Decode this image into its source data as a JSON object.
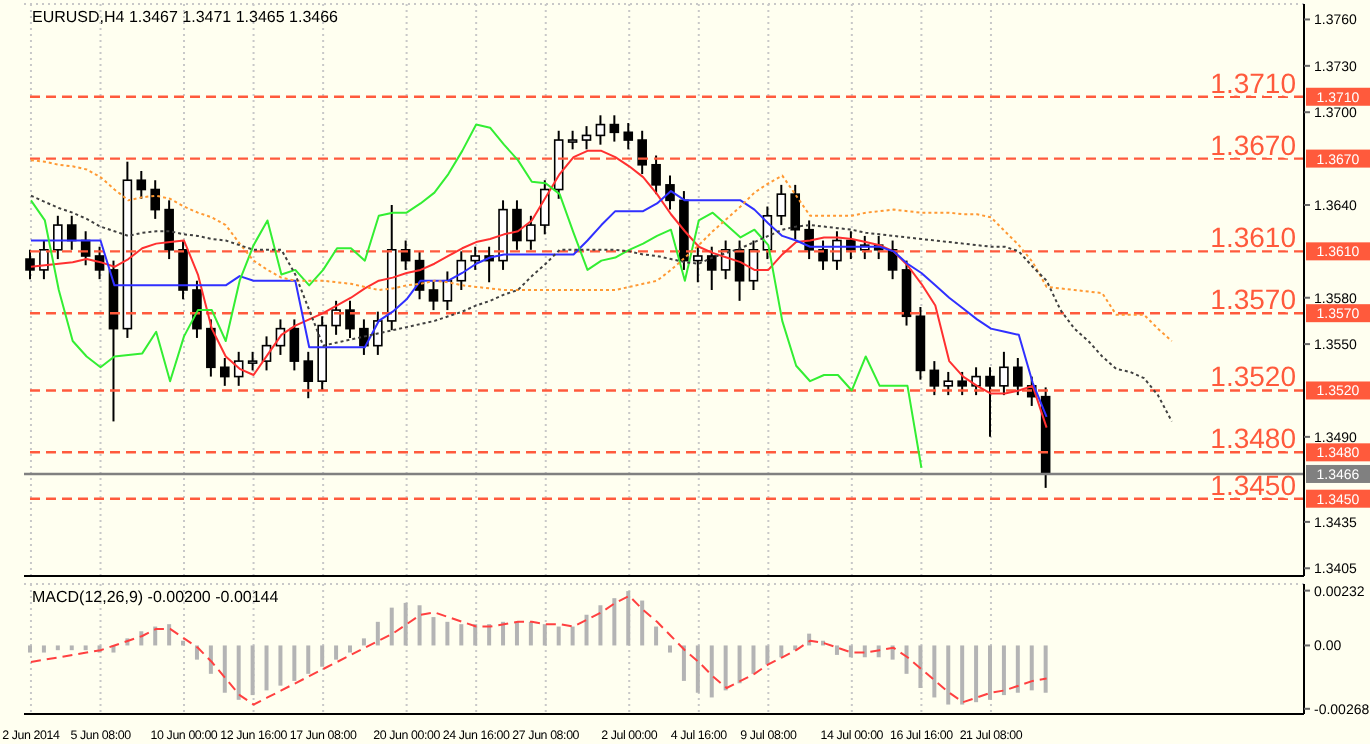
{
  "chart_data": [
    {
      "type": "candlestick",
      "title": "EURUSD,H4  1.3467 1.3471 1.3465 1.3466",
      "color": "#000000",
      "grid": true,
      "tick_labels": "y",
      "categories": [
        null,
        null,
        null,
        null,
        null,
        null,
        null,
        null,
        null,
        null,
        null,
        null,
        null,
        null,
        null,
        null,
        null,
        null,
        null,
        null,
        null,
        null,
        null,
        null,
        null,
        null,
        null,
        null,
        null,
        null,
        null,
        null,
        null,
        null,
        null,
        null,
        null,
        null,
        null,
        null,
        null,
        null,
        null,
        null,
        null,
        null,
        null,
        null,
        null,
        null,
        null,
        null,
        null,
        null,
        null,
        null,
        null,
        null,
        null,
        null,
        null,
        null,
        null,
        null,
        null,
        null,
        null,
        null,
        null,
        null,
        null,
        null,
        null,
        null,
        null,
        null,
        null,
        null,
        null,
        null,
        null,
        null,
        null,
        null,
        null,
        null,
        null,
        null,
        null,
        null,
        null,
        null
      ],
      "ylim": [
        1.34,
        1.377
      ],
      "yticks": [
        {
          "value": 1.376,
          "label": "1.3760"
        },
        {
          "value": 1.373,
          "label": "1.3730"
        },
        {
          "value": 1.37,
          "label": "1.3700"
        },
        {
          "value": 1.364,
          "label": "1.3640"
        },
        {
          "value": 1.358,
          "label": "1.3580"
        },
        {
          "value": 1.355,
          "label": "1.3550"
        },
        {
          "value": 1.349,
          "label": "1.3490"
        },
        {
          "value": 1.3435,
          "label": "1.3435"
        },
        {
          "value": 1.3405,
          "label": "1.3405"
        }
      ],
      "ohlc": [
        [
          1.3605,
          1.3611,
          1.3592,
          1.3598
        ],
        [
          1.3598,
          1.3617,
          1.3592,
          1.3611
        ],
        [
          1.3611,
          1.3633,
          1.3605,
          1.3627
        ],
        [
          1.3627,
          1.3633,
          1.3611,
          1.3617
        ],
        [
          1.3617,
          1.3623,
          1.3601,
          1.3607
        ],
        [
          1.3607,
          1.3613,
          1.3592,
          1.3598
        ],
        [
          1.3598,
          1.3604,
          1.35,
          1.356
        ],
        [
          1.356,
          1.3668,
          1.3554,
          1.3656
        ],
        [
          1.3656,
          1.3662,
          1.3644,
          1.365
        ],
        [
          1.365,
          1.3656,
          1.3631,
          1.3637
        ],
        [
          1.3637,
          1.3643,
          1.3605,
          1.3611
        ],
        [
          1.3611,
          1.3617,
          1.3579,
          1.3585
        ],
        [
          1.3585,
          1.3591,
          1.3554,
          1.356
        ],
        [
          1.356,
          1.3566,
          1.3529,
          1.3535
        ],
        [
          1.3535,
          1.3541,
          1.3523,
          1.3529
        ],
        [
          1.3529,
          1.3545,
          1.3523,
          1.3539
        ],
        [
          1.3539,
          1.3545,
          1.3533,
          1.3539
        ],
        [
          1.3539,
          1.3555,
          1.3533,
          1.3549
        ],
        [
          1.3549,
          1.3566,
          1.3543,
          1.356
        ],
        [
          1.356,
          1.3566,
          1.3533,
          1.3539
        ],
        [
          1.3539,
          1.3545,
          1.3515,
          1.3526
        ],
        [
          1.3526,
          1.3568,
          1.352,
          1.3562
        ],
        [
          1.3562,
          1.3578,
          1.3556,
          1.3572
        ],
        [
          1.3572,
          1.3578,
          1.3554,
          1.356
        ],
        [
          1.356,
          1.3566,
          1.3543,
          1.3549
        ],
        [
          1.3549,
          1.3571,
          1.3543,
          1.3565
        ],
        [
          1.3565,
          1.364,
          1.3559,
          1.3611
        ],
        [
          1.3611,
          1.3617,
          1.3598,
          1.3604
        ],
        [
          1.3604,
          1.361,
          1.3579,
          1.3585
        ],
        [
          1.3585,
          1.3591,
          1.3572,
          1.3578
        ],
        [
          1.3578,
          1.3597,
          1.3572,
          1.3591
        ],
        [
          1.3591,
          1.361,
          1.3585,
          1.3604
        ],
        [
          1.3604,
          1.3613,
          1.3598,
          1.3607
        ],
        [
          1.3607,
          1.3613,
          1.359,
          1.3604
        ],
        [
          1.3604,
          1.3643,
          1.3598,
          1.3637
        ],
        [
          1.3637,
          1.3643,
          1.3611,
          1.3617
        ],
        [
          1.3617,
          1.3633,
          1.3611,
          1.3627
        ],
        [
          1.3627,
          1.3656,
          1.3621,
          1.365
        ],
        [
          1.365,
          1.3688,
          1.3644,
          1.3682
        ],
        [
          1.3682,
          1.3688,
          1.3676,
          1.3682
        ],
        [
          1.3682,
          1.3691,
          1.3676,
          1.3685
        ],
        [
          1.3685,
          1.3698,
          1.3679,
          1.3692
        ],
        [
          1.3692,
          1.3698,
          1.3681,
          1.3687
        ],
        [
          1.3687,
          1.3693,
          1.3676,
          1.3682
        ],
        [
          1.3682,
          1.3688,
          1.366,
          1.3666
        ],
        [
          1.3666,
          1.3672,
          1.3647,
          1.3653
        ],
        [
          1.3653,
          1.3659,
          1.3637,
          1.3643
        ],
        [
          1.3643,
          1.3649,
          1.3598,
          1.3604
        ],
        [
          1.3604,
          1.3613,
          1.359,
          1.3607
        ],
        [
          1.3607,
          1.3613,
          1.3585,
          1.3598
        ],
        [
          1.3598,
          1.3617,
          1.3592,
          1.3611
        ],
        [
          1.3611,
          1.3617,
          1.3578,
          1.3591
        ],
        [
          1.3591,
          1.3617,
          1.3585,
          1.3611
        ],
        [
          1.3611,
          1.3639,
          1.3605,
          1.3633
        ],
        [
          1.3633,
          1.3653,
          1.3627,
          1.3647
        ],
        [
          1.3647,
          1.3653,
          1.3618,
          1.3624
        ],
        [
          1.3624,
          1.363,
          1.3605,
          1.3611
        ],
        [
          1.3611,
          1.3617,
          1.3598,
          1.3604
        ],
        [
          1.3604,
          1.3623,
          1.3598,
          1.3617
        ],
        [
          1.3617,
          1.3623,
          1.3605,
          1.3611
        ],
        [
          1.3611,
          1.362,
          1.3605,
          1.3614
        ],
        [
          1.3614,
          1.362,
          1.3605,
          1.3611
        ],
        [
          1.3611,
          1.3617,
          1.3592,
          1.3598
        ],
        [
          1.3598,
          1.3604,
          1.3562,
          1.3568
        ],
        [
          1.3568,
          1.3574,
          1.3527,
          1.3533
        ],
        [
          1.3533,
          1.3539,
          1.3517,
          1.3523
        ],
        [
          1.3523,
          1.3532,
          1.3517,
          1.3526
        ],
        [
          1.3526,
          1.3532,
          1.3517,
          1.3523
        ],
        [
          1.3523,
          1.3535,
          1.3517,
          1.3529
        ],
        [
          1.3529,
          1.3535,
          1.349,
          1.3523
        ],
        [
          1.3523,
          1.3545,
          1.3517,
          1.3535
        ],
        [
          1.3535,
          1.3541,
          1.3517,
          1.3523
        ],
        [
          1.3523,
          1.3529,
          1.351,
          1.3516
        ],
        [
          1.3516,
          1.3522,
          1.3457,
          1.3466
        ],
        null,
        null,
        null,
        null,
        null,
        null,
        null,
        null,
        null,
        null,
        null,
        null,
        null,
        null,
        null,
        null,
        null,
        null
      ],
      "series": [
        {
          "type": "line",
          "color": "#ff3030",
          "values": [
            1.36,
            1.3601,
            1.3602,
            1.3603,
            1.3605,
            1.3603,
            1.36,
            1.3605,
            1.3612,
            1.3615,
            1.3616,
            1.3617,
            1.3595,
            1.356,
            1.3542,
            1.3534,
            1.353,
            1.3543,
            1.3556,
            1.3562,
            1.3566,
            1.357,
            1.3575,
            1.358,
            1.3586,
            1.3591,
            1.3593,
            1.3596,
            1.3598,
            1.3602,
            1.3607,
            1.3612,
            1.3616,
            1.3618,
            1.3621,
            1.3623,
            1.363,
            1.3645,
            1.366,
            1.3671,
            1.3675,
            1.3675,
            1.3671,
            1.3665,
            1.3658,
            1.3647,
            1.3634,
            1.3623,
            1.3613,
            1.3609,
            1.3606,
            1.3603,
            1.3598,
            1.3598,
            1.3608,
            1.3616,
            1.3617,
            1.3619,
            1.3619,
            1.3618,
            1.3616,
            1.3614,
            1.361,
            1.3601,
            1.3589,
            1.3575,
            1.3539,
            1.3529,
            1.3523,
            1.3518,
            1.3518,
            1.352,
            1.3523,
            1.3496,
            null,
            null,
            null,
            null,
            null,
            null,
            null,
            null,
            null,
            null,
            null,
            null,
            null,
            null,
            null,
            null,
            null,
            null
          ]
        },
        {
          "type": "line",
          "color": "#3030ff",
          "values": [
            1.3617,
            1.3617,
            1.3617,
            1.3617,
            1.3617,
            1.3617,
            1.3588,
            1.3588,
            1.3588,
            1.3588,
            1.3588,
            1.3588,
            1.3588,
            1.3588,
            1.3588,
            1.3594,
            1.3591,
            1.3591,
            1.3591,
            1.3591,
            1.3548,
            1.3548,
            1.3548,
            1.3548,
            1.3548,
            1.3565,
            1.3571,
            1.3579,
            1.3591,
            1.3591,
            1.3591,
            1.3596,
            1.3602,
            1.3606,
            1.3608,
            1.3608,
            1.3608,
            1.3608,
            1.3608,
            1.3608,
            1.3617,
            1.3627,
            1.3636,
            1.3636,
            1.3636,
            1.3641,
            1.3649,
            1.3643,
            1.3643,
            1.3643,
            1.3643,
            1.3643,
            1.3637,
            1.3628,
            1.362,
            1.3617,
            1.3613,
            1.3613,
            1.3613,
            1.3613,
            1.3613,
            1.3613,
            1.361,
            1.3602,
            1.3596,
            1.3588,
            1.358,
            1.3573,
            1.3566,
            1.356,
            1.3558,
            1.3556,
            1.3525,
            1.3503,
            null,
            null,
            null,
            null,
            null,
            null,
            null,
            null,
            null,
            null,
            null,
            null,
            null,
            null,
            null,
            null,
            null,
            null
          ]
        },
        {
          "type": "line",
          "color": "#33ee33",
          "values": [
            1.3643,
            1.363,
            1.3585,
            1.3552,
            1.3542,
            1.3535,
            1.3542,
            1.3543,
            1.3544,
            1.3558,
            1.3526,
            1.3555,
            1.3572,
            1.3572,
            1.3552,
            1.3591,
            1.3614,
            1.363,
            1.3595,
            1.3598,
            1.3588,
            1.3598,
            1.3612,
            1.3612,
            1.3604,
            1.3633,
            1.3635,
            1.3635,
            1.3641,
            1.3648,
            1.366,
            1.3675,
            1.3692,
            1.369,
            1.3679,
            1.3669,
            1.3655,
            1.3654,
            1.3647,
            1.3622,
            1.3598,
            1.3604,
            1.3606,
            1.3611,
            1.3615,
            1.362,
            1.3624,
            1.3591,
            1.363,
            1.3635,
            1.3627,
            1.3619,
            1.3624,
            1.3614,
            1.3565,
            1.3536,
            1.3526,
            1.353,
            1.353,
            1.352,
            1.3542,
            1.3523,
            1.3523,
            1.3523,
            1.347,
            null,
            null,
            null,
            null,
            null,
            null,
            null,
            null,
            null,
            null,
            null,
            null,
            null,
            null,
            null,
            null,
            null,
            null,
            null,
            null,
            null,
            null,
            null,
            null,
            null,
            null,
            null
          ]
        },
        {
          "type": "line",
          "color": "#ff9933",
          "line_style": "dotted",
          "values": [
            1.3669,
            1.3668,
            1.3666,
            1.3665,
            1.3663,
            1.3658,
            1.365,
            1.3643,
            1.3645,
            1.3646,
            1.3644,
            1.3639,
            1.3635,
            1.3632,
            1.3627,
            1.3615,
            1.3604,
            1.3598,
            1.3593,
            1.3591,
            1.3591,
            1.3591,
            1.359,
            1.3589,
            1.3587,
            1.3585,
            1.3586,
            1.3588,
            1.3589,
            1.3591,
            1.359,
            1.3588,
            1.3587,
            1.3586,
            1.3585,
            1.3585,
            1.3585,
            1.3585,
            1.3585,
            1.3585,
            1.3585,
            1.3585,
            1.3585,
            1.3587,
            1.3589,
            1.3591,
            1.3598,
            1.3606,
            1.3614,
            1.3623,
            1.3631,
            1.3639,
            1.3648,
            1.3654,
            1.3659,
            1.3646,
            1.3633,
            1.3633,
            1.3633,
            1.3633,
            1.3635,
            1.3636,
            1.3637,
            1.3636,
            1.3635,
            1.3635,
            1.3635,
            1.3634,
            1.3634,
            1.3632,
            1.3623,
            1.3614,
            1.3603,
            1.3587,
            1.3586,
            1.3585,
            1.3584,
            1.3583,
            1.3569,
            1.3569,
            1.3569,
            1.356,
            1.3552,
            null,
            null,
            null,
            null,
            null,
            null,
            null,
            null,
            null
          ]
        },
        {
          "type": "line",
          "color": "#404040",
          "line_style": "dotted",
          "values": [
            1.3646,
            1.3642,
            1.3638,
            1.3635,
            1.3631,
            1.3626,
            1.3623,
            1.362,
            1.3622,
            1.3623,
            1.3623,
            1.3621,
            1.362,
            1.3618,
            1.3617,
            1.3614,
            1.3611,
            1.3611,
            1.3611,
            1.3595,
            1.3572,
            1.3549,
            1.3551,
            1.3553,
            1.3555,
            1.3557,
            1.3559,
            1.3561,
            1.3563,
            1.3565,
            1.3568,
            1.3571,
            1.3575,
            1.3578,
            1.3582,
            1.3585,
            1.3594,
            1.3602,
            1.3611,
            1.3611,
            1.3611,
            1.3611,
            1.3611,
            1.361,
            1.3608,
            1.3607,
            1.3605,
            1.3603,
            1.3602,
            1.3606,
            1.3609,
            1.3612,
            1.3616,
            1.362,
            1.3624,
            1.3626,
            1.3627,
            1.3626,
            1.3625,
            1.3624,
            1.3622,
            1.3621,
            1.362,
            1.3619,
            1.3618,
            1.3617,
            1.3616,
            1.3615,
            1.3614,
            1.3613,
            1.3613,
            1.361,
            1.36,
            1.3591,
            1.3572,
            1.356,
            1.3552,
            1.3542,
            1.3534,
            1.3532,
            1.3528,
            1.3517,
            1.35,
            null,
            null,
            null,
            null,
            null,
            null,
            null,
            null,
            null
          ]
        }
      ],
      "ref_lines": [
        {
          "axis": "y",
          "value": 1.371,
          "label": "1.3710",
          "color": "#ff5a3c",
          "line_style": "dashed"
        },
        {
          "axis": "y",
          "value": 1.367,
          "label": "1.3670",
          "color": "#ff5a3c",
          "line_style": "dashed"
        },
        {
          "axis": "y",
          "value": 1.361,
          "label": "1.3610",
          "color": "#ff5a3c",
          "line_style": "dashed"
        },
        {
          "axis": "y",
          "value": 1.357,
          "label": "1.3570",
          "color": "#ff5a3c",
          "line_style": "dashed"
        },
        {
          "axis": "y",
          "value": 1.352,
          "label": "1.3520",
          "color": "#ff5a3c",
          "line_style": "dashed"
        },
        {
          "axis": "y",
          "value": 1.348,
          "label": "1.3480",
          "color": "#ff5a3c",
          "line_style": "dashed"
        },
        {
          "axis": "y",
          "value": 1.345,
          "label": "1.3450",
          "color": "#ff5a3c",
          "line_style": "dashed"
        },
        {
          "axis": "y",
          "value": 1.3466,
          "label": "1.3466",
          "color": "#808080",
          "line_style": "solid"
        }
      ]
    },
    {
      "type": "bar",
      "title": "MACD(12,26,9) -0.00200 -0.00144",
      "grid": true,
      "categories": [
        "2 Jun 2014",
        null,
        null,
        null,
        null,
        "5 Jun 08:00",
        null,
        null,
        null,
        null,
        null,
        "10 Jun 00:00",
        null,
        null,
        null,
        null,
        "12 Jun 16:00",
        null,
        null,
        null,
        null,
        "17 Jun 08:00",
        null,
        null,
        null,
        null,
        null,
        "20 Jun 00:00",
        null,
        null,
        null,
        null,
        "24 Jun 16:00",
        null,
        null,
        null,
        null,
        "27 Jun 08:00",
        null,
        null,
        null,
        null,
        null,
        "2 Jul 00:00",
        null,
        null,
        null,
        null,
        "4 Jul 16:00",
        null,
        null,
        null,
        null,
        "9 Jul 08:00",
        null,
        null,
        null,
        null,
        null,
        "14 Jul 00:00",
        null,
        null,
        null,
        null,
        "16 Jul 16:00",
        null,
        null,
        null,
        null,
        "21 Jul 08:00",
        null,
        null,
        null,
        null,
        null,
        null,
        null,
        null,
        null,
        null,
        null,
        null,
        null,
        null,
        null,
        null,
        null,
        null,
        null,
        null,
        null,
        null
      ],
      "ylim": [
        -0.0029,
        0.0026
      ],
      "yticks": [
        {
          "value": 0.00232,
          "label": "0.00232"
        },
        {
          "value": 0,
          "label": "0.00"
        },
        {
          "value": -0.00268,
          "label": "-0.00268"
        }
      ],
      "series": [
        {
          "type": "bar",
          "color": "#b4b4b4",
          "values": [
            -0.0003,
            -0.0003,
            -0.0002,
            -0.0002,
            -0.0002,
            -0.0003,
            -0.0003,
            0.0003,
            0.0006,
            0.0008,
            0.0009,
            0.0002,
            -0.0006,
            -0.0012,
            -0.002,
            -0.0023,
            -0.0021,
            -0.0019,
            -0.0017,
            -0.0015,
            -0.0012,
            -0.0009,
            -0.0006,
            -0.0003,
            0.0003,
            0.001,
            0.0016,
            0.0018,
            0.0017,
            0.0012,
            0.001,
            0.0009,
            0.0009,
            0.0009,
            0.001,
            0.001,
            0.001,
            0.0009,
            0.0008,
            0.0008,
            0.0013,
            0.0017,
            0.002,
            0.0023,
            0.0019,
            0.0008,
            -0.0003,
            -0.0015,
            -0.002,
            -0.0022,
            -0.0019,
            -0.0016,
            -0.0012,
            -0.0008,
            -0.0005,
            -0.0002,
            0.0005,
            0.0002,
            -0.0004,
            -0.0005,
            -0.0005,
            -0.0005,
            -0.0006,
            -0.0012,
            -0.0018,
            -0.0022,
            -0.0025,
            -0.0025,
            -0.0024,
            -0.0023,
            -0.0021,
            -0.002,
            -0.0019,
            -0.002,
            null,
            null,
            null,
            null,
            null,
            null,
            null,
            null,
            null,
            null,
            null,
            null,
            null,
            null,
            null,
            null,
            null,
            null
          ]
        },
        {
          "type": "line",
          "color": "#ff4040",
          "line_style": "dashed",
          "values": [
            -0.0007,
            -0.0006,
            -0.0005,
            -0.0004,
            -0.0003,
            -0.0002,
            0,
            0.0002,
            0.0004,
            0.0007,
            0.0007,
            0.0003,
            -0.0001,
            -0.0007,
            -0.0014,
            -0.0021,
            -0.0025,
            -0.0022,
            -0.0019,
            -0.0016,
            -0.0013,
            -0.001,
            -0.0007,
            -0.0004,
            -0.0001,
            0.0002,
            0.0005,
            0.0009,
            0.0013,
            0.0014,
            0.0012,
            0.001,
            0.0008,
            0.0008,
            0.0009,
            0.001,
            0.001,
            0.0009,
            0.0009,
            0.0008,
            0.0011,
            0.0014,
            0.0018,
            0.0021,
            0.0015,
            0.001,
            0.0004,
            -0.0002,
            -0.0007,
            -0.0013,
            -0.0018,
            -0.0015,
            -0.0012,
            -0.0008,
            -0.0005,
            -0.0002,
            0.0002,
            0.0001,
            -0.0001,
            -0.0003,
            -0.0003,
            -0.0002,
            -0.0001,
            -0.0005,
            -0.001,
            -0.0015,
            -0.002,
            -0.0024,
            -0.0022,
            -0.002,
            -0.0019,
            -0.0017,
            -0.0015,
            -0.0014,
            null,
            null,
            null,
            null,
            null,
            null,
            null,
            null,
            null,
            null,
            null,
            null,
            null,
            null,
            null,
            null,
            null,
            null
          ]
        }
      ]
    }
  ]
}
